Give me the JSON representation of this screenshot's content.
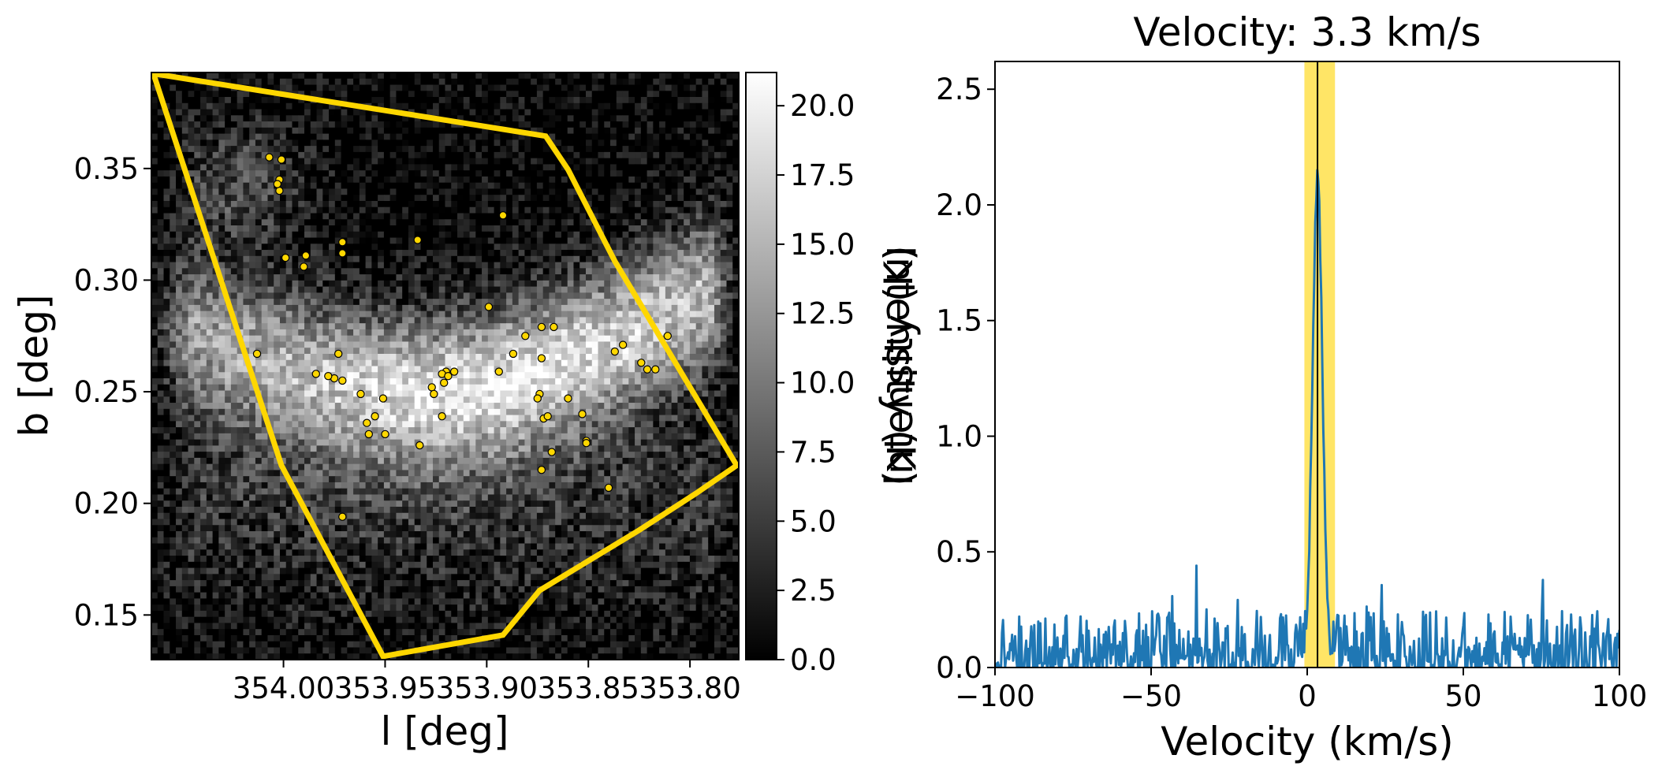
{
  "colors": {
    "polygon": "#FFD700",
    "source_fill": "#FFD700",
    "source_edge": "#000000",
    "spectrum_line": "#1f77b4",
    "highlight_band": "#FFE566",
    "velocity_marker": "#000000"
  },
  "chart_data": [
    {
      "type": "heatmap",
      "colormap": "gray",
      "xlabel": "l [deg]",
      "ylabel": "b [deg]",
      "xlim": [
        354.065,
        353.776
      ],
      "ylim": [
        0.13,
        0.393
      ],
      "xticks": [
        {
          "value": 354.0,
          "label": "354.00"
        },
        {
          "value": 353.95,
          "label": "353.95"
        },
        {
          "value": 353.9,
          "label": "353.90"
        },
        {
          "value": 353.85,
          "label": "353.85"
        },
        {
          "value": 353.8,
          "label": "353.80"
        }
      ],
      "yticks": [
        {
          "value": 0.15,
          "label": "0.15"
        },
        {
          "value": 0.2,
          "label": "0.20"
        },
        {
          "value": 0.25,
          "label": "0.25"
        },
        {
          "value": 0.3,
          "label": "0.30"
        },
        {
          "value": 0.35,
          "label": "0.35"
        }
      ],
      "colorbar": {
        "label": "Intensity (K)",
        "range": [
          0,
          21.2
        ],
        "ticks": [
          {
            "value": 0.0,
            "label": "0.0"
          },
          {
            "value": 2.5,
            "label": "2.5"
          },
          {
            "value": 5.0,
            "label": "5.0"
          },
          {
            "value": 7.5,
            "label": "7.5"
          },
          {
            "value": 10.0,
            "label": "10.0"
          },
          {
            "value": 12.5,
            "label": "12.5"
          },
          {
            "value": 15.0,
            "label": "15.0"
          },
          {
            "value": 17.5,
            "label": "17.5"
          },
          {
            "value": 20.0,
            "label": "20.0"
          }
        ]
      },
      "polygon": [
        [
          354.064,
          0.3925
        ],
        [
          353.871,
          0.3645
        ],
        [
          353.86,
          0.3495
        ],
        [
          353.837,
          0.3085
        ],
        [
          353.777,
          0.217
        ],
        [
          353.797,
          0.2045
        ],
        [
          353.825,
          0.188
        ],
        [
          353.874,
          0.161
        ],
        [
          353.892,
          0.141
        ],
        [
          353.951,
          0.1315
        ],
        [
          354.001,
          0.217
        ]
      ],
      "sources": [
        [
          354.007,
          0.355
        ],
        [
          354.001,
          0.354
        ],
        [
          354.002,
          0.345
        ],
        [
          354.002,
          0.34
        ],
        [
          354.003,
          0.343
        ],
        [
          353.892,
          0.329
        ],
        [
          353.934,
          0.318
        ],
        [
          353.971,
          0.317
        ],
        [
          353.971,
          0.312
        ],
        [
          353.989,
          0.311
        ],
        [
          353.999,
          0.31
        ],
        [
          353.99,
          0.306
        ],
        [
          353.899,
          0.288
        ],
        [
          353.873,
          0.279
        ],
        [
          353.867,
          0.279
        ],
        [
          353.881,
          0.275
        ],
        [
          353.811,
          0.275
        ],
        [
          353.873,
          0.265
        ],
        [
          353.894,
          0.259
        ],
        [
          353.916,
          0.259
        ],
        [
          353.92,
          0.259
        ],
        [
          353.922,
          0.258
        ],
        [
          353.919,
          0.257
        ],
        [
          353.921,
          0.254
        ],
        [
          353.927,
          0.252
        ],
        [
          353.926,
          0.249
        ],
        [
          353.951,
          0.247
        ],
        [
          353.962,
          0.249
        ],
        [
          353.973,
          0.267
        ],
        [
          353.975,
          0.256
        ],
        [
          353.978,
          0.257
        ],
        [
          353.971,
          0.255
        ],
        [
          353.984,
          0.258
        ],
        [
          354.013,
          0.267
        ],
        [
          353.971,
          0.194
        ],
        [
          353.955,
          0.239
        ],
        [
          353.959,
          0.236
        ],
        [
          353.958,
          0.231
        ],
        [
          353.95,
          0.231
        ],
        [
          353.933,
          0.226
        ],
        [
          353.922,
          0.239
        ],
        [
          353.887,
          0.267
        ],
        [
          353.874,
          0.249
        ],
        [
          353.875,
          0.247
        ],
        [
          353.872,
          0.238
        ],
        [
          353.87,
          0.239
        ],
        [
          353.868,
          0.223
        ],
        [
          353.873,
          0.215
        ],
        [
          353.86,
          0.247
        ],
        [
          353.853,
          0.24
        ],
        [
          353.851,
          0.228
        ],
        [
          353.851,
          0.227
        ],
        [
          353.837,
          0.268
        ],
        [
          353.833,
          0.271
        ],
        [
          353.824,
          0.263
        ],
        [
          353.821,
          0.26
        ],
        [
          353.817,
          0.26
        ],
        [
          353.84,
          0.207
        ]
      ]
    },
    {
      "type": "line",
      "title": "Velocity: 3.3 km/s",
      "xlabel": "Velocity (km/s)",
      "ylabel": "Intensity (K)",
      "xlim": [
        -100,
        100
      ],
      "ylim": [
        0,
        2.62
      ],
      "xticks": [
        {
          "value": -100,
          "label": "−100"
        },
        {
          "value": -50,
          "label": "−50"
        },
        {
          "value": 0,
          "label": "0"
        },
        {
          "value": 50,
          "label": "50"
        },
        {
          "value": 100,
          "label": "100"
        }
      ],
      "yticks": [
        {
          "value": 0.0,
          "label": "0.0"
        },
        {
          "value": 0.5,
          "label": "0.5"
        },
        {
          "value": 1.0,
          "label": "1.0"
        },
        {
          "value": 1.5,
          "label": "1.5"
        },
        {
          "value": 2.0,
          "label": "2.0"
        },
        {
          "value": 2.5,
          "label": "2.5"
        }
      ],
      "highlight_range": [
        -0.9,
        8.9
      ],
      "velocity_marker": 3.3,
      "series": [
        {
          "line_peak_center": 3.3,
          "line_peak_amplitude": 2.1,
          "line_peak_sigma": 1.6,
          "noise_level": 0.12,
          "noise_samples": 620
        }
      ]
    }
  ]
}
